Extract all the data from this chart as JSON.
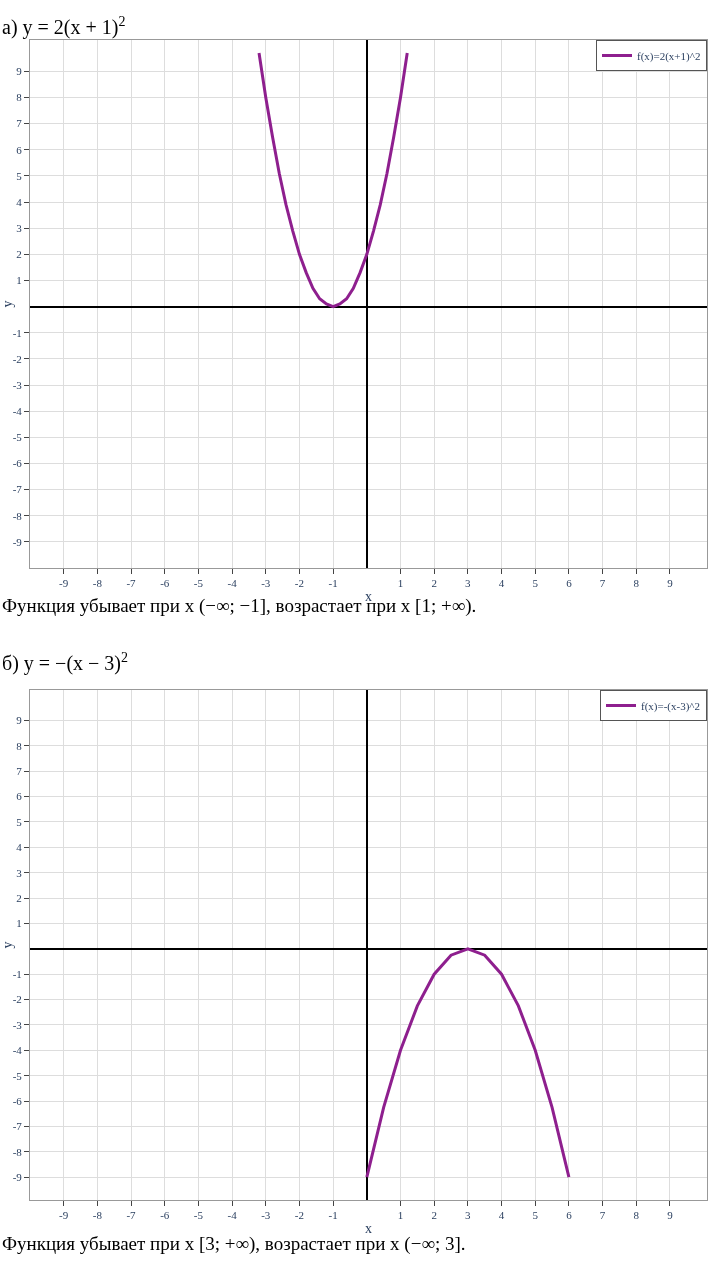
{
  "chart_data": [
    {
      "type": "line",
      "title": "а) y = 2(x + 1)$^{2}$",
      "xlabel": "x",
      "ylabel": "y",
      "annotations": [
        "Функция убывает при x (−∞; −1], возрастает при x [1; +∞)."
      ],
      "series": [
        {
          "name": "f(x)=2(x+1)^2",
          "color": "#8e1f8e",
          "x": [
            -3.2,
            -3.0,
            -2.8,
            -2.6,
            -2.4,
            -2.2,
            -2.0,
            -1.8,
            -1.6,
            -1.4,
            -1.2,
            -1.0,
            -0.8,
            -0.6,
            -0.4,
            -0.2,
            0,
            0.2,
            0.4,
            0.6,
            0.8,
            1.0,
            1.2
          ],
          "values": [
            9.7,
            8,
            6.5,
            5.1,
            3.9,
            2.9,
            2,
            1.3,
            0.7,
            0.3,
            0.1,
            0,
            0.1,
            0.3,
            0.7,
            1.3,
            2,
            2.9,
            3.9,
            5.1,
            6.5,
            8,
            9.7
          ]
        }
      ],
      "xlim": [
        -10,
        10.1
      ],
      "ylim": [
        -10,
        10.2
      ],
      "xticks": [
        -9,
        -8,
        -7,
        -6,
        -5,
        -4,
        -3,
        -2,
        -1,
        1,
        2,
        3,
        4,
        5,
        6,
        7,
        8,
        9
      ],
      "yticks": [
        -9,
        -8,
        -7,
        -6,
        -5,
        -4,
        -3,
        -2,
        -1,
        1,
        2,
        3,
        4,
        5,
        6,
        7,
        8,
        9
      ],
      "grid": true,
      "legend": "top right",
      "marker": "none",
      "line_style": "solid"
    },
    {
      "type": "line",
      "title": "б) y = −(x − 3)$^{2}$",
      "xlabel": "x",
      "ylabel": "y",
      "annotations": [
        "Функция убывает при x [3; +∞), возрастает при x (−∞; 3]."
      ],
      "series": [
        {
          "name": "f(x)=-(x-3)^2",
          "color": "#8e1f8e",
          "x": [
            0,
            0.5,
            1,
            1.5,
            2,
            2.5,
            3,
            3.5,
            4,
            4.5,
            5,
            5.5,
            6
          ],
          "values": [
            -9,
            -6.25,
            -4,
            -2.25,
            -1,
            -0.25,
            0,
            -0.25,
            -1,
            -2.25,
            -4,
            -6.25,
            -9
          ]
        }
      ],
      "xlim": [
        -10,
        10.1
      ],
      "ylim": [
        -9.9,
        10.2
      ],
      "xticks": [
        -9,
        -8,
        -7,
        -6,
        -5,
        -4,
        -3,
        -2,
        -1,
        1,
        2,
        3,
        4,
        5,
        6,
        7,
        8,
        9
      ],
      "yticks": [
        -9,
        -8,
        -7,
        -6,
        -5,
        -4,
        -3,
        -2,
        -1,
        1,
        2,
        3,
        4,
        5,
        6,
        7,
        8,
        9
      ],
      "grid": true,
      "legend": "top right",
      "marker": "none",
      "line_style": "solid"
    }
  ]
}
